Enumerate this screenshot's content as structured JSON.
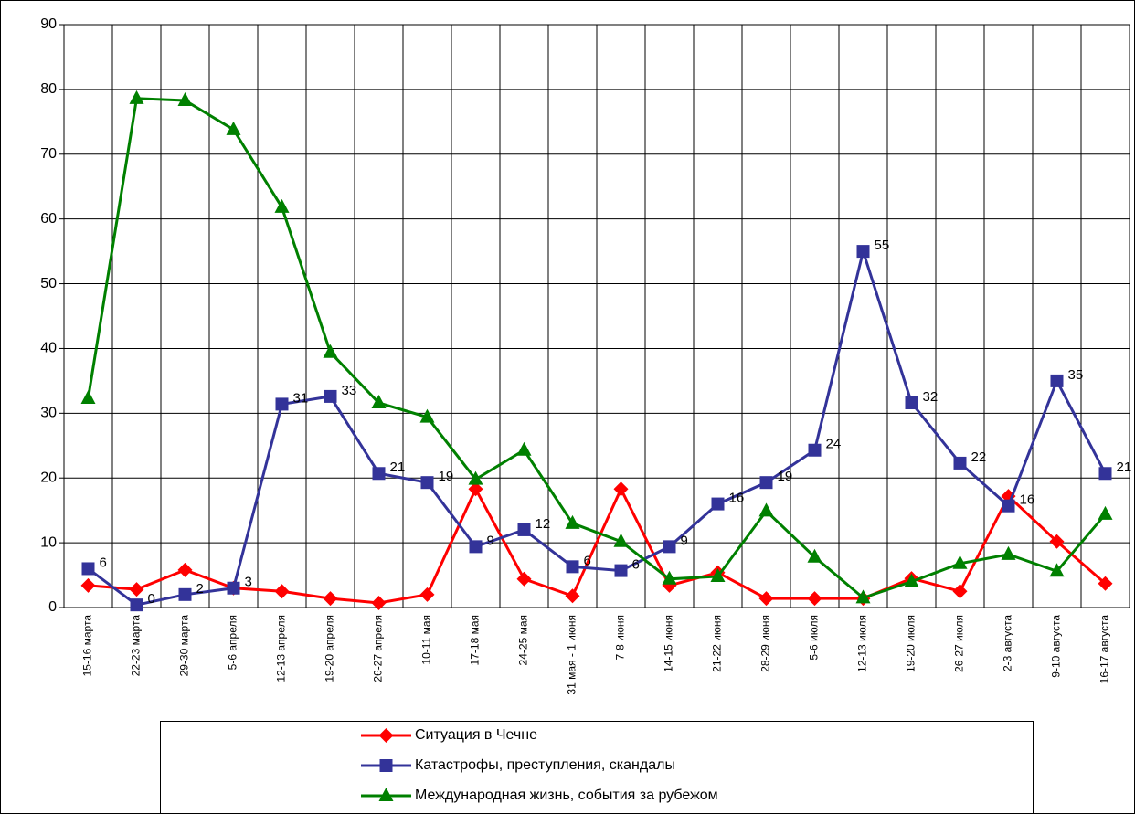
{
  "chart_data": {
    "type": "line",
    "categories": [
      "15-16 марта",
      "22-23 марта",
      "29-30 марта",
      "5-6 апреля",
      "12-13 апреля",
      "19-20 апреля",
      "26-27 апреля",
      "10-11 мая",
      "17-18 мая",
      "24-25 мая",
      "31 мая - 1 июня",
      "7-8 июня",
      "14-15 июня",
      "21-22 июня",
      "28-29 июня",
      "5-6 июля",
      "12-13 июля",
      "19-20 июля",
      "26-27 июля",
      "2-3 августа",
      "9-10 августа",
      "16-17 августа"
    ],
    "series": [
      {
        "name": "Ситуация в Чечне",
        "color": "#ff0000",
        "marker": "diamond",
        "values": [
          3.4,
          2.8,
          5.8,
          3.0,
          2.5,
          1.4,
          0.7,
          2.0,
          18.3,
          4.4,
          1.8,
          18.3,
          3.4,
          5.4,
          1.4,
          1.4,
          1.4,
          4.5,
          2.5,
          17.2,
          10.2,
          3.7
        ]
      },
      {
        "name": "Катастрофы, преступления, скандалы",
        "color": "#333399",
        "marker": "square",
        "values": [
          6,
          0.4,
          2,
          3,
          31.4,
          32.6,
          20.7,
          19.3,
          9.4,
          12,
          6.3,
          5.7,
          9.4,
          16,
          19.3,
          24.3,
          55,
          31.6,
          22.3,
          15.7,
          35,
          20.7
        ],
        "value_labels": [
          "6",
          "0",
          "2",
          "3",
          "31",
          "33",
          "21",
          "19",
          "9",
          "12",
          "6",
          "6",
          "9",
          "16",
          "19",
          "24",
          "55",
          "32",
          "22",
          "16",
          "35",
          "21"
        ]
      },
      {
        "name": "Международная жизнь, события за рубежом",
        "color": "#008000",
        "marker": "triangle",
        "values": [
          32.3,
          78.6,
          78.3,
          73.8,
          61.8,
          39.4,
          31.6,
          29.4,
          19.8,
          24.3,
          13,
          10.2,
          4.4,
          4.8,
          14.9,
          7.8,
          1.5,
          4,
          6.8,
          8.2,
          5.6,
          14.4
        ]
      }
    ],
    "ylim": [
      0,
      90
    ],
    "yticks": [
      0,
      10,
      20,
      30,
      40,
      50,
      60,
      70,
      80,
      90
    ],
    "grid": true
  }
}
